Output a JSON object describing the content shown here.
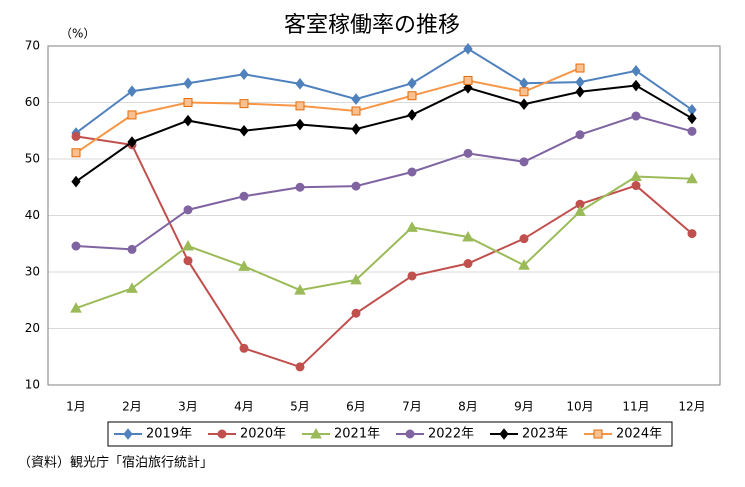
{
  "chart_data": {
    "type": "line",
    "title": "客室稼働率の推移",
    "y_unit_label": "（%）",
    "source": "（資料）観光庁「宿泊旅行統計」",
    "categories": [
      "1月",
      "2月",
      "3月",
      "4月",
      "5月",
      "6月",
      "7月",
      "8月",
      "9月",
      "10月",
      "11月",
      "12月"
    ],
    "ylim": [
      10,
      70
    ],
    "yticks": [
      10,
      20,
      30,
      40,
      50,
      60,
      70
    ],
    "grid": true,
    "legend": "bottom",
    "series": [
      {
        "name": "2019年",
        "color": "#4f81bd",
        "marker": "diamond",
        "values": [
          54.6,
          62.0,
          63.4,
          65.0,
          63.3,
          60.6,
          63.4,
          69.5,
          63.4,
          63.6,
          65.6,
          58.7
        ]
      },
      {
        "name": "2020年",
        "color": "#c0504d",
        "marker": "circle",
        "values": [
          54.0,
          52.5,
          32.0,
          16.5,
          13.2,
          22.7,
          29.3,
          31.5,
          35.9,
          42.0,
          45.3,
          36.8
        ]
      },
      {
        "name": "2021年",
        "color": "#9bbb59",
        "marker": "triangle",
        "values": [
          23.6,
          27.1,
          34.6,
          31.0,
          26.8,
          28.6,
          37.9,
          36.2,
          31.2,
          40.7,
          46.9,
          46.5
        ]
      },
      {
        "name": "2022年",
        "color": "#8064a2",
        "marker": "circle",
        "values": [
          34.6,
          34.0,
          41.0,
          43.4,
          45.0,
          45.2,
          47.7,
          51.0,
          49.5,
          54.3,
          57.6,
          54.9
        ]
      },
      {
        "name": "2023年",
        "color": "#000000",
        "marker": "diamond",
        "values": [
          46.0,
          53.0,
          56.8,
          55.0,
          56.1,
          55.3,
          57.8,
          62.6,
          59.7,
          61.9,
          63.0,
          57.2
        ]
      },
      {
        "name": "2024年",
        "color": "#f79646",
        "marker": "square",
        "values": [
          51.1,
          57.8,
          60.0,
          59.8,
          59.4,
          58.5,
          61.2,
          63.9,
          61.9,
          66.1,
          null,
          null
        ]
      }
    ]
  }
}
